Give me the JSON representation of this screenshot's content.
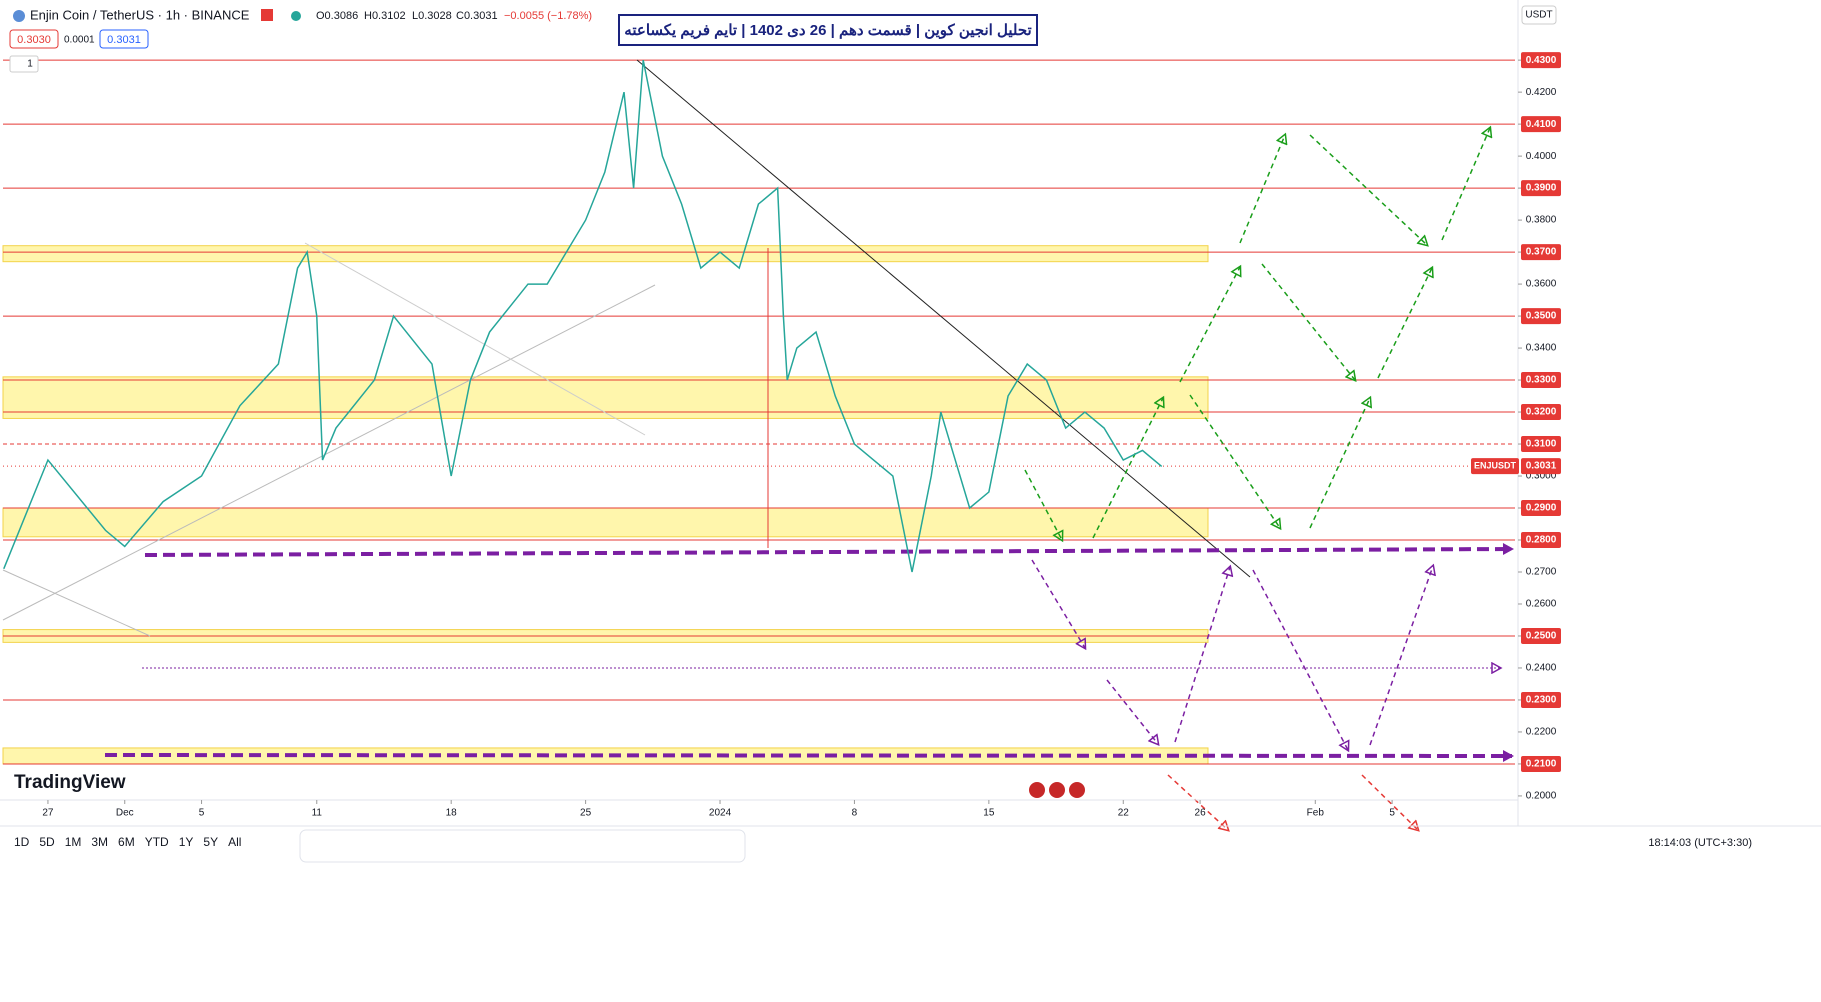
{
  "header": {
    "symbol": "Enjin Coin / TetherUS · 1h · BINANCE",
    "open": "O0.3086",
    "high": "H0.3102",
    "low": "L0.3028",
    "close": "C0.3031",
    "change": "−0.0055 (−1.78%)",
    "bid": "0.3030",
    "spread": "0.0001",
    "ask": "0.3031",
    "indicator_count": "1",
    "currency": "USDT",
    "brand": "TradingView"
  },
  "chart_data": {
    "type": "line",
    "title": "تحلیل انجین کوین | قسمت دهم | 26 دی 1402 | تایم فریم یکساعته",
    "x": [
      -2.3,
      0,
      3,
      4,
      6,
      8,
      10,
      12,
      13,
      13.5,
      14,
      14.3,
      15,
      17,
      18,
      20,
      21,
      22,
      23,
      25,
      26,
      27,
      28,
      29,
      30,
      30.5,
      31,
      32,
      33,
      34,
      35,
      36,
      37,
      38,
      38.3,
      38.5,
      39,
      40,
      41,
      42,
      43,
      44,
      45,
      46,
      46.5,
      47,
      48,
      49,
      50,
      51,
      52,
      53,
      54,
      55,
      56,
      57,
      58
    ],
    "series": [
      {
        "name": "ENJUSDT",
        "color": "#26a69a",
        "values": [
          0.271,
          0.305,
          0.283,
          0.278,
          0.292,
          0.3,
          0.322,
          0.335,
          0.365,
          0.37,
          0.35,
          0.305,
          0.315,
          0.33,
          0.35,
          0.335,
          0.3,
          0.33,
          0.345,
          0.36,
          0.36,
          0.37,
          0.38,
          0.395,
          0.42,
          0.39,
          0.43,
          0.4,
          0.385,
          0.365,
          0.37,
          0.365,
          0.385,
          0.39,
          0.35,
          0.33,
          0.34,
          0.345,
          0.325,
          0.31,
          0.305,
          0.3,
          0.27,
          0.3,
          0.32,
          0.31,
          0.29,
          0.295,
          0.325,
          0.335,
          0.33,
          0.315,
          0.32,
          0.315,
          0.305,
          0.308,
          0.303
        ]
      }
    ],
    "xlim": [
      -2.34,
      76.4
    ],
    "xticks": [
      {
        "value": 0,
        "label": "27"
      },
      {
        "value": 4,
        "label": "Dec"
      },
      {
        "value": 8,
        "label": "5"
      },
      {
        "value": 14,
        "label": "11"
      },
      {
        "value": 21,
        "label": "18"
      },
      {
        "value": 28,
        "label": "25"
      },
      {
        "value": 35,
        "label": "2024"
      },
      {
        "value": 42,
        "label": "8"
      },
      {
        "value": 49,
        "label": "15"
      },
      {
        "value": 56,
        "label": "22"
      },
      {
        "value": 60,
        "label": "26"
      },
      {
        "value": 66,
        "label": "Feb"
      },
      {
        "value": 70,
        "label": "5"
      }
    ],
    "ylim": [
      0.1906,
      0.4488
    ],
    "yticks": [
      {
        "value": 0.43,
        "label": "0.4300"
      },
      {
        "value": 0.42,
        "label": "0.4200"
      },
      {
        "value": 0.41,
        "label": "0.4100"
      },
      {
        "value": 0.4,
        "label": "0.4000"
      },
      {
        "value": 0.39,
        "label": "0.3900"
      },
      {
        "value": 0.38,
        "label": "0.3800"
      },
      {
        "value": 0.37,
        "label": "0.3700"
      },
      {
        "value": 0.36,
        "label": "0.3600"
      },
      {
        "value": 0.35,
        "label": "0.3500"
      },
      {
        "value": 0.34,
        "label": "0.3400"
      },
      {
        "value": 0.33,
        "label": "0.3300"
      },
      {
        "value": 0.32,
        "label": "0.3200"
      },
      {
        "value": 0.31,
        "label": "0.3100"
      },
      {
        "value": 0.3,
        "label": "0.3000"
      },
      {
        "value": 0.29,
        "label": "0.2900"
      },
      {
        "value": 0.28,
        "label": "0.2800"
      },
      {
        "value": 0.27,
        "label": "0.2700"
      },
      {
        "value": 0.26,
        "label": "0.2600"
      },
      {
        "value": 0.25,
        "label": "0.2500"
      },
      {
        "value": 0.24,
        "label": "0.2400"
      },
      {
        "value": 0.23,
        "label": "0.2300"
      },
      {
        "value": 0.22,
        "label": "0.2200"
      },
      {
        "value": 0.21,
        "label": "0.2100"
      },
      {
        "value": 0.2,
        "label": "0.2000"
      }
    ],
    "levels": [
      {
        "value": 0.43,
        "label": "0.4300"
      },
      {
        "value": 0.41,
        "label": "0.4100"
      },
      {
        "value": 0.39,
        "label": "0.3900"
      },
      {
        "value": 0.37,
        "label": "0.3700"
      },
      {
        "value": 0.35,
        "label": "0.3500"
      },
      {
        "value": 0.33,
        "label": "0.3300"
      },
      {
        "value": 0.32,
        "label": "0.3200"
      },
      {
        "value": 0.31,
        "label": "0.3100",
        "style": "dashed"
      },
      {
        "value": 0.29,
        "label": "0.2900"
      },
      {
        "value": 0.28,
        "label": "0.2800"
      },
      {
        "value": 0.25,
        "label": "0.2500"
      },
      {
        "value": 0.23,
        "label": "0.2300"
      },
      {
        "value": 0.21,
        "label": "0.2100"
      }
    ],
    "level_color": "#e53935",
    "zones": [
      {
        "from": 0.367,
        "to": 0.372
      },
      {
        "from": 0.318,
        "to": 0.331
      },
      {
        "from": 0.281,
        "to": 0.29
      },
      {
        "from": 0.248,
        "to": 0.252
      },
      {
        "from": 0.21,
        "to": 0.215
      }
    ],
    "zone_color": "#fff59d",
    "current_price": {
      "name": "ENJUSDT",
      "value": 0.3031,
      "label": "0.3031"
    }
  },
  "toolbar": {
    "ranges": [
      "1D",
      "5D",
      "1M",
      "3M",
      "6M",
      "YTD",
      "1Y",
      "5Y",
      "All"
    ],
    "clock": "18:14:03 (UTC+3:30)"
  }
}
